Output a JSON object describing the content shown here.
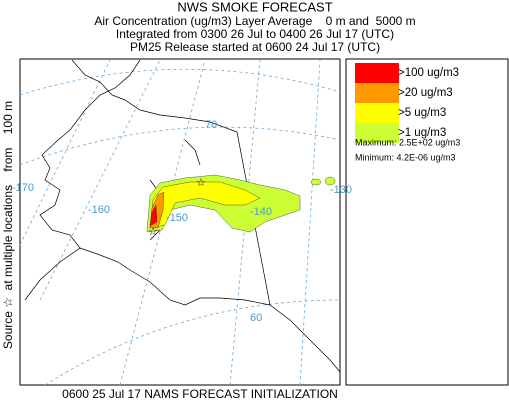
{
  "header": {
    "title": "NWS SMOKE FORECAST",
    "lines": [
      "Air Concentration (ug/m3) Layer Average    0 m and  5000 m",
      "Integrated from 0300 26 Jul to 0400 26 Jul 17 (UTC)",
      "PM25 Release started at 0600 24 Jul 17 (UTC)"
    ]
  },
  "side_label": "Source ☆  at multiple locations    from    100 m",
  "map": {
    "graticule_labels": [
      "-170",
      "-160",
      "-150",
      "-140",
      "-130",
      "70",
      "60"
    ]
  },
  "legend": {
    "items": [
      {
        "label": ">100 ug/m3",
        "color": "#ff0000"
      },
      {
        "label": ">20 ug/m3",
        "color": "#ff9900"
      },
      {
        "label": ">5 ug/m3",
        "color": "#ffff00"
      },
      {
        "label": ">1 ug/m3",
        "color": "#ccff33"
      }
    ],
    "maximum": "Maximum: 2.5E+02 ug/m3",
    "minimum": "Minimum: 4.2E-06 ug/m3"
  },
  "footer": "0600 25 Jul 17 NAMS FORECAST INITIALIZATION"
}
